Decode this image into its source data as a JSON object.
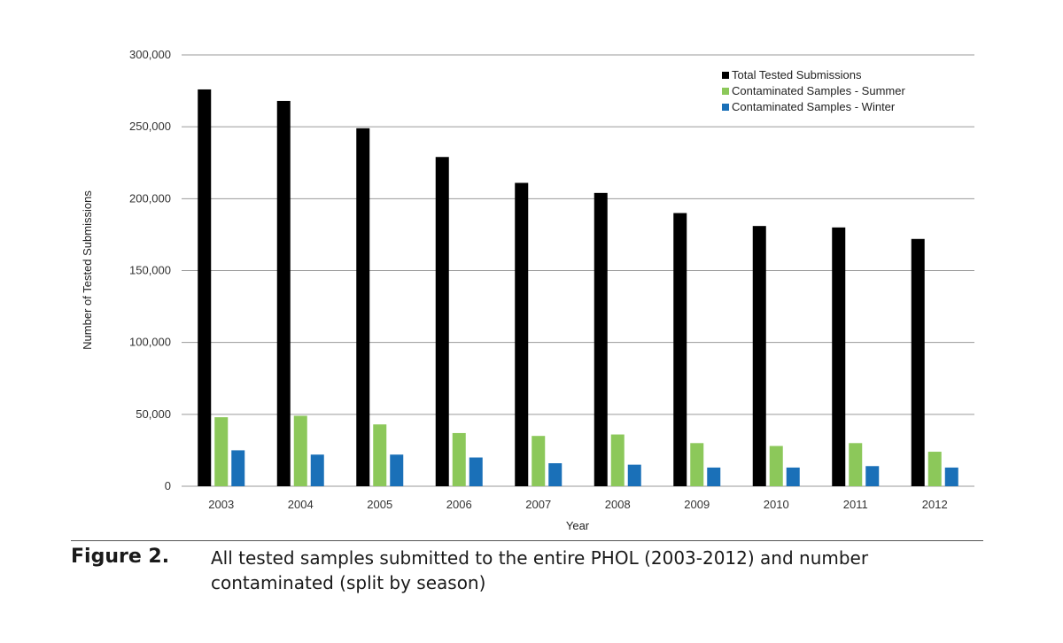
{
  "chart_data": {
    "type": "bar",
    "categories": [
      "2003",
      "2004",
      "2005",
      "2006",
      "2007",
      "2008",
      "2009",
      "2010",
      "2011",
      "2012"
    ],
    "series": [
      {
        "name": "Total Tested Submissions",
        "color": "#000000",
        "values": [
          276000,
          268000,
          249000,
          229000,
          211000,
          204000,
          190000,
          181000,
          180000,
          172000
        ]
      },
      {
        "name": "Contaminated Samples - Summer",
        "color": "#8cc85a",
        "values": [
          48000,
          49000,
          43000,
          37000,
          35000,
          36000,
          30000,
          28000,
          30000,
          24000
        ]
      },
      {
        "name": "Contaminated Samples - Winter",
        "color": "#1a70b8",
        "values": [
          25000,
          22000,
          22000,
          20000,
          16000,
          15000,
          13000,
          13000,
          14000,
          13000
        ]
      }
    ],
    "xlabel": "Year",
    "ylabel": "Number of Tested Submissions",
    "ylim": [
      0,
      300000
    ],
    "yticks": [
      0,
      50000,
      100000,
      150000,
      200000,
      250000,
      300000
    ],
    "ytick_labels": [
      "0",
      "50,000",
      "100,000",
      "150,000",
      "200,000",
      "250,000",
      "300,000"
    ],
    "grid": true,
    "legend_position": "top-right"
  },
  "caption": {
    "label": "Figure 2.",
    "text": "All tested samples submitted to the entire PHOL (2003-2012) and number contaminated (split by season)"
  }
}
